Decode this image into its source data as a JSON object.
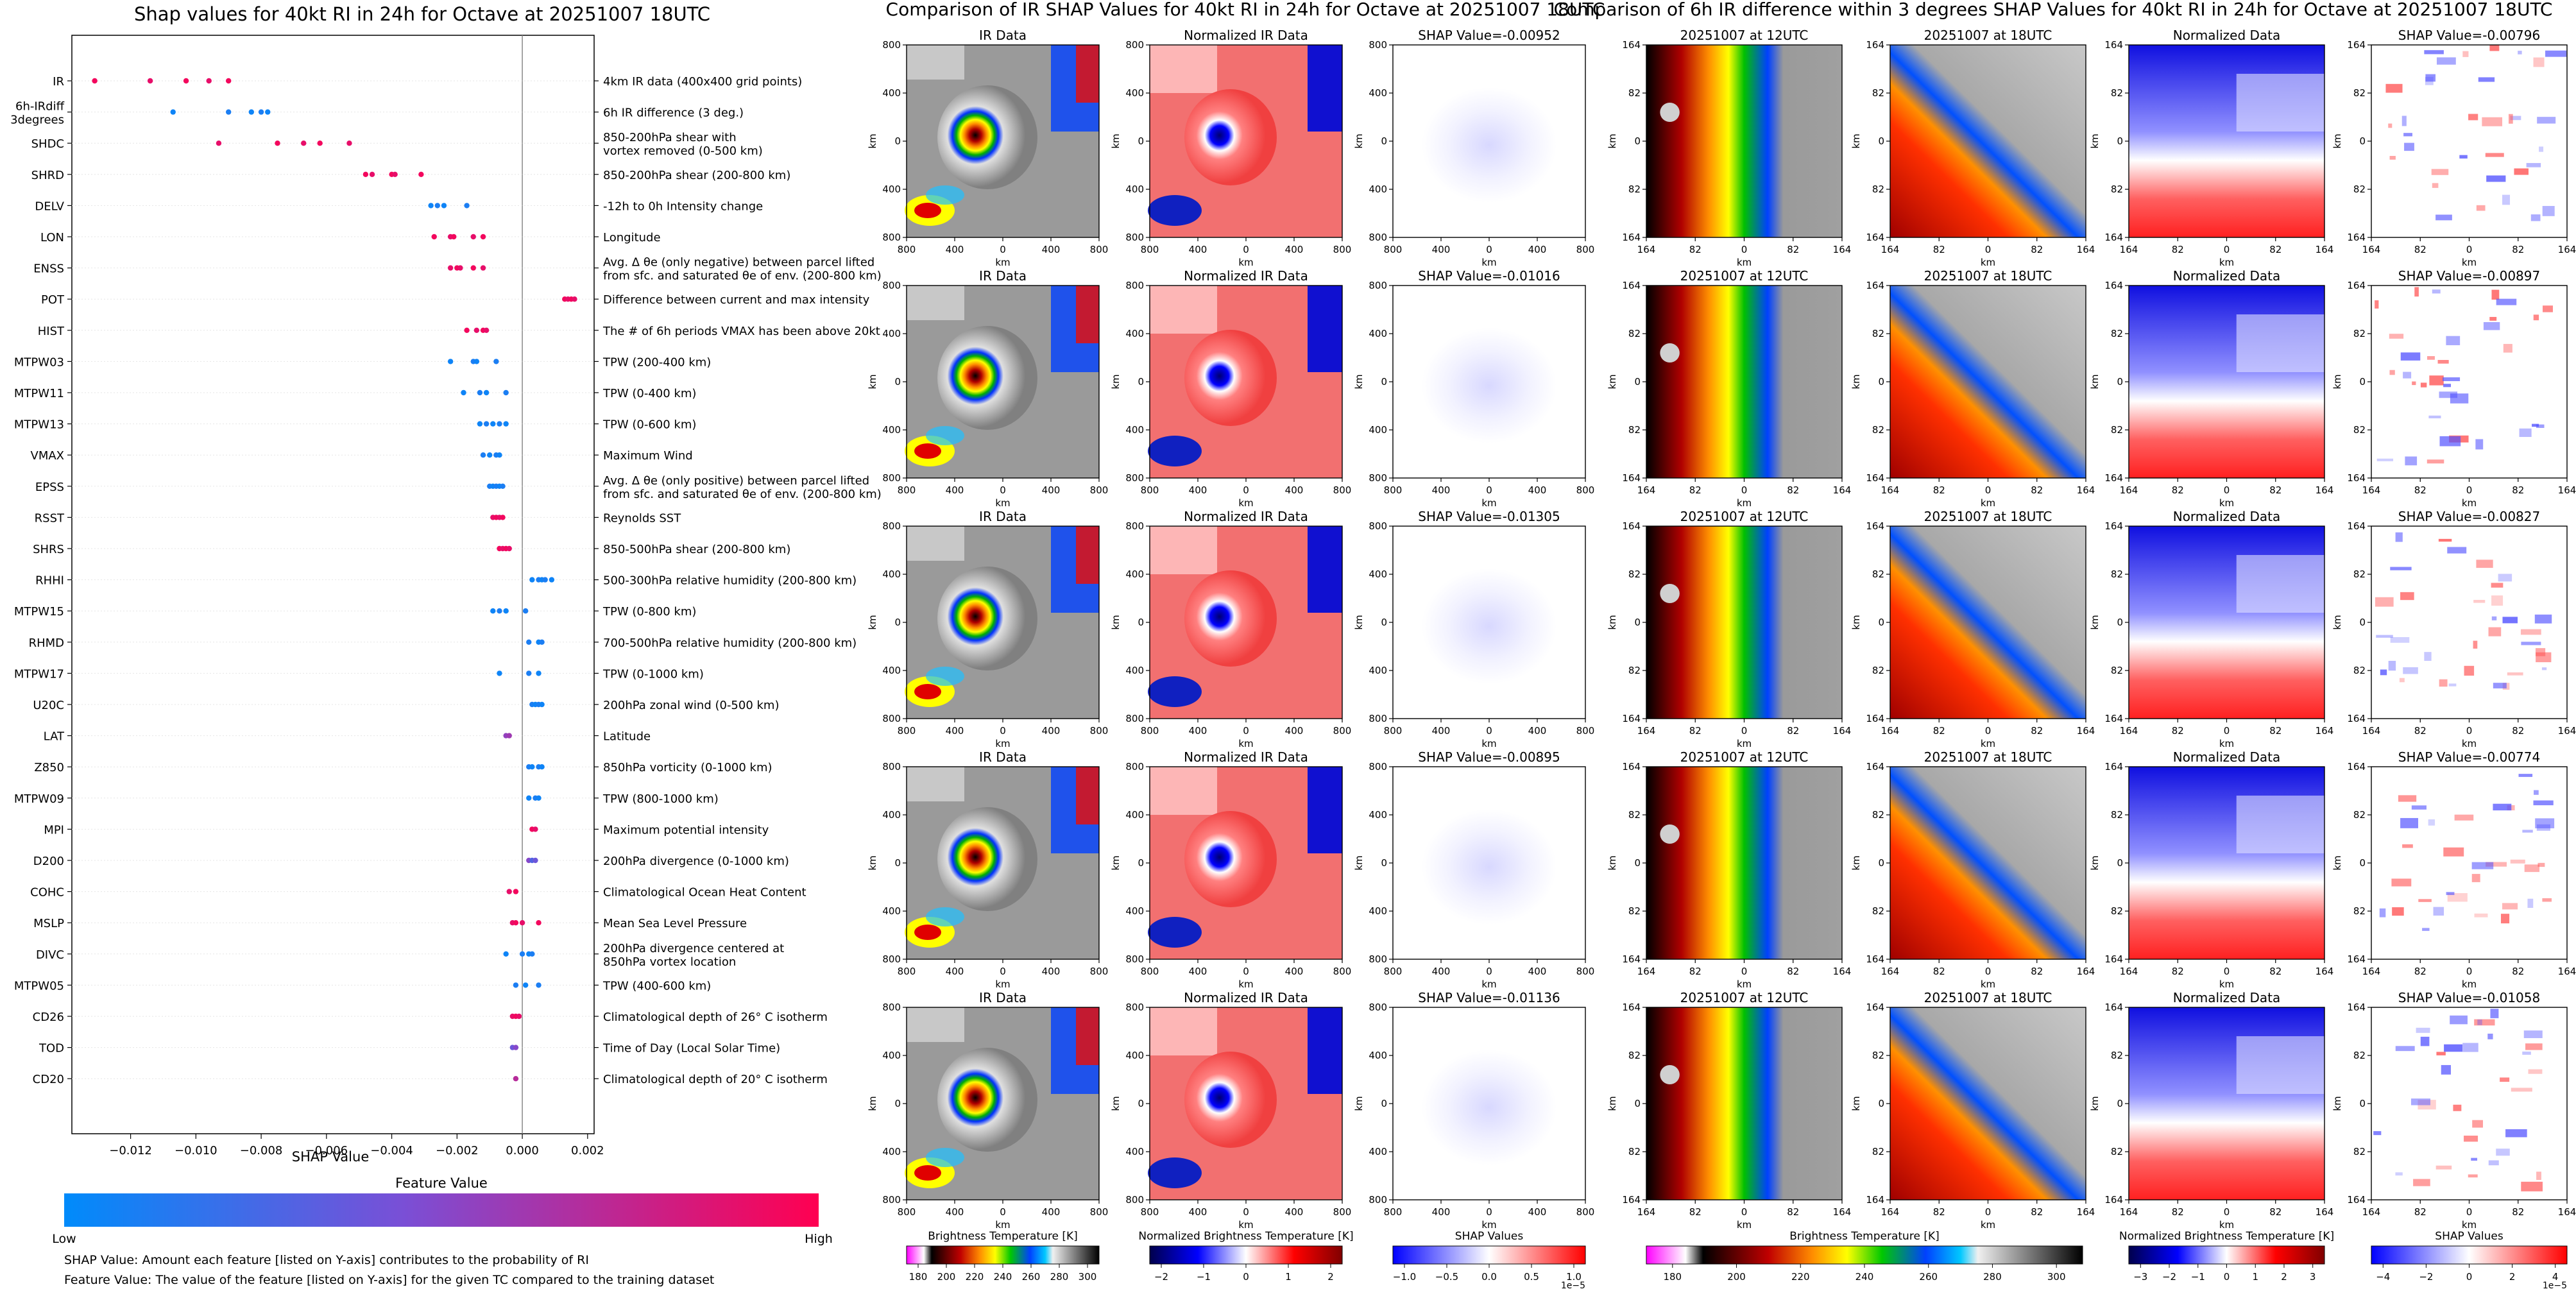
{
  "left_panel": {
    "title": "Shap values for 40kt RI in 24h for Octave at 20251007 18UTC",
    "xlabel": "SHAP Value",
    "colorbar": {
      "title": "Feature Value",
      "low_label": "Low",
      "high_label": "High",
      "low_color": "#008bfb",
      "high_color": "#ff0051"
    },
    "notes": [
      "SHAP Value: Amount each feature [listed on Y-axis] contributes to the probability of RI",
      "Feature Value: The value of the feature [listed on Y-axis] for the given TC compared to the training dataset"
    ]
  },
  "middle_section": {
    "title": "Comparison of IR SHAP Values for 40kt RI in 24h for Octave at 20251007 18UTC",
    "col_titles": [
      "IR Data",
      "Normalized IR Data"
    ],
    "shap_titles": [
      "SHAP Value=-0.00952",
      "SHAP Value=-0.01016",
      "SHAP Value=-0.01305",
      "SHAP Value=-0.00895",
      "SHAP Value=-0.01136"
    ],
    "axis_unit": "km",
    "x_ticks": [
      "800",
      "400",
      "0",
      "400",
      "800"
    ],
    "y_ticks": [
      "800",
      "400",
      "0",
      "400",
      "800"
    ],
    "colorbars": [
      {
        "label": "Brightness Temperature [K]",
        "ticks": [
          "180",
          "200",
          "220",
          "240",
          "260",
          "280",
          "300"
        ],
        "multiplier": ""
      },
      {
        "label": "Normalized Brightness Temperature [K]",
        "ticks": [
          "−2",
          "−1",
          "0",
          "1",
          "2"
        ],
        "multiplier": ""
      },
      {
        "label": "SHAP Values",
        "ticks": [
          "−1.0",
          "−0.5",
          "0.0",
          "0.5",
          "1.0"
        ],
        "multiplier": "1e−5"
      }
    ]
  },
  "right_section": {
    "title": "Comparison of 6h IR difference within 3 degrees SHAP Values for 40kt RI in 24h for Octave at 20251007 18UTC",
    "col_titles": [
      "20251007 at 12UTC",
      "20251007 at 18UTC",
      "Normalized Data"
    ],
    "shap_titles": [
      "SHAP Value=-0.00796",
      "SHAP Value=-0.00897",
      "SHAP Value=-0.00827",
      "SHAP Value=-0.00774",
      "SHAP Value=-0.01058"
    ],
    "axis_unit": "km",
    "x_ticks": [
      "164",
      "82",
      "0",
      "82",
      "164"
    ],
    "y_ticks": [
      "164",
      "82",
      "0",
      "82",
      "164"
    ],
    "colorbars": [
      {
        "label": "Brightness Temperature [K]",
        "ticks": [
          "180",
          "200",
          "220",
          "240",
          "260",
          "280",
          "300"
        ],
        "multiplier": ""
      },
      {
        "label": "Normalized Brightness Temperature [K]",
        "ticks": [
          "−3",
          "−2",
          "−1",
          "0",
          "1",
          "2",
          "3"
        ],
        "multiplier": ""
      },
      {
        "label": "SHAP Values",
        "ticks": [
          "−4",
          "−2",
          "0",
          "2",
          "4"
        ],
        "multiplier": "1e−5"
      }
    ]
  },
  "chart_data": {
    "type": "scatter",
    "title": "Shap values for 40kt RI in 24h for Octave at 20251007 18UTC",
    "xlabel": "SHAP Value",
    "xlim": [
      -0.0138,
      0.0022
    ],
    "x_ticks": [
      -0.012,
      -0.01,
      -0.008,
      -0.006,
      -0.004,
      -0.002,
      0.0,
      0.002
    ],
    "x_tick_labels": [
      "−0.012",
      "−0.010",
      "−0.008",
      "−0.006",
      "−0.004",
      "−0.002",
      "0.000",
      "0.002"
    ],
    "features": [
      {
        "name": "IR",
        "desc": "4km IR data (400x400 grid points)",
        "points": [
          [
            -0.0131,
            0.95
          ],
          [
            -0.0114,
            0.9
          ],
          [
            -0.0103,
            0.95
          ],
          [
            -0.0096,
            0.9
          ],
          [
            -0.009,
            0.95
          ]
        ]
      },
      {
        "name": "6h-IRdiff\n3degrees",
        "desc": "6h IR difference (3 deg.)",
        "points": [
          [
            -0.0107,
            0.05
          ],
          [
            -0.009,
            0.1
          ],
          [
            -0.0083,
            0.05
          ],
          [
            -0.008,
            0.1
          ],
          [
            -0.0078,
            0.05
          ]
        ]
      },
      {
        "name": "SHDC",
        "desc": "850-200hPa shear with\nvortex removed (0-500 km)",
        "points": [
          [
            -0.0093,
            0.9
          ],
          [
            -0.0075,
            0.95
          ],
          [
            -0.0067,
            0.9
          ],
          [
            -0.0062,
            0.95
          ],
          [
            -0.0053,
            0.9
          ]
        ]
      },
      {
        "name": "SHRD",
        "desc": "850-200hPa shear (200-800 km)",
        "points": [
          [
            -0.0048,
            0.95
          ],
          [
            -0.0046,
            0.9
          ],
          [
            -0.004,
            0.95
          ],
          [
            -0.0039,
            0.9
          ],
          [
            -0.0031,
            0.95
          ]
        ]
      },
      {
        "name": "DELV",
        "desc": "-12h to 0h Intensity change",
        "points": [
          [
            -0.0028,
            0.05
          ],
          [
            -0.0026,
            0.1
          ],
          [
            -0.0024,
            0.05
          ],
          [
            -0.0017,
            0.1
          ]
        ]
      },
      {
        "name": "LON",
        "desc": "Longitude",
        "points": [
          [
            -0.0027,
            0.95
          ],
          [
            -0.0022,
            0.9
          ],
          [
            -0.0021,
            0.95
          ],
          [
            -0.0015,
            0.9
          ],
          [
            -0.0012,
            0.95
          ]
        ]
      },
      {
        "name": "ENSS",
        "desc": "Avg. Δ θe (only negative) between parcel lifted\nfrom sfc. and saturated θe of env. (200-800 km)",
        "points": [
          [
            -0.0022,
            0.9
          ],
          [
            -0.002,
            0.95
          ],
          [
            -0.0019,
            0.9
          ],
          [
            -0.0015,
            0.95
          ],
          [
            -0.0012,
            0.9
          ]
        ]
      },
      {
        "name": "POT",
        "desc": "Difference between current and max intensity",
        "points": [
          [
            0.0013,
            0.95
          ],
          [
            0.0014,
            0.9
          ],
          [
            0.0015,
            0.95
          ],
          [
            0.0016,
            0.9
          ]
        ]
      },
      {
        "name": "HIST",
        "desc": "The # of 6h periods VMAX has been above 20kt",
        "points": [
          [
            -0.0017,
            0.95
          ],
          [
            -0.0014,
            0.9
          ],
          [
            -0.0012,
            0.95
          ],
          [
            -0.0011,
            0.9
          ]
        ]
      },
      {
        "name": "MTPW03",
        "desc": "TPW (200-400 km)",
        "points": [
          [
            -0.0022,
            0.05
          ],
          [
            -0.0015,
            0.1
          ],
          [
            -0.0014,
            0.05
          ],
          [
            -0.0008,
            0.1
          ]
        ]
      },
      {
        "name": "MTPW11",
        "desc": "TPW (0-400 km)",
        "points": [
          [
            -0.0018,
            0.05
          ],
          [
            -0.0013,
            0.1
          ],
          [
            -0.0011,
            0.05
          ],
          [
            -0.0005,
            0.1
          ]
        ]
      },
      {
        "name": "MTPW13",
        "desc": "TPW (0-600 km)",
        "points": [
          [
            -0.0013,
            0.05
          ],
          [
            -0.0011,
            0.1
          ],
          [
            -0.0009,
            0.05
          ],
          [
            -0.0007,
            0.1
          ],
          [
            -0.0005,
            0.05
          ]
        ]
      },
      {
        "name": "VMAX",
        "desc": "Maximum Wind",
        "points": [
          [
            -0.0012,
            0.1
          ],
          [
            -0.001,
            0.05
          ],
          [
            -0.0008,
            0.1
          ],
          [
            -0.0007,
            0.05
          ]
        ]
      },
      {
        "name": "EPSS",
        "desc": "Avg. Δ θe (only positive) between parcel lifted\nfrom sfc. and saturated θe of env. (200-800 km)",
        "points": [
          [
            -0.001,
            0.1
          ],
          [
            -0.0009,
            0.05
          ],
          [
            -0.0008,
            0.1
          ],
          [
            -0.0007,
            0.05
          ],
          [
            -0.0006,
            0.1
          ]
        ]
      },
      {
        "name": "RSST",
        "desc": "Reynolds SST",
        "points": [
          [
            -0.0009,
            0.9
          ],
          [
            -0.0008,
            0.95
          ],
          [
            -0.0007,
            0.9
          ],
          [
            -0.0006,
            0.95
          ]
        ]
      },
      {
        "name": "SHRS",
        "desc": "850-500hPa shear (200-800 km)",
        "points": [
          [
            -0.0007,
            0.95
          ],
          [
            -0.0006,
            0.9
          ],
          [
            -0.0005,
            0.95
          ],
          [
            -0.0004,
            0.9
          ]
        ]
      },
      {
        "name": "RHHI",
        "desc": "500-300hPa relative humidity (200-800 km)",
        "points": [
          [
            0.0003,
            0.05
          ],
          [
            0.0005,
            0.1
          ],
          [
            0.0006,
            0.05
          ],
          [
            0.0007,
            0.1
          ],
          [
            0.0009,
            0.05
          ]
        ]
      },
      {
        "name": "MTPW15",
        "desc": "TPW (0-800 km)",
        "points": [
          [
            -0.0009,
            0.05
          ],
          [
            -0.0007,
            0.1
          ],
          [
            -0.0005,
            0.05
          ],
          [
            0.0001,
            0.1
          ]
        ]
      },
      {
        "name": "RHMD",
        "desc": "700-500hPa relative humidity (200-800 km)",
        "points": [
          [
            0.0002,
            0.1
          ],
          [
            0.0005,
            0.05
          ],
          [
            0.0006,
            0.1
          ]
        ]
      },
      {
        "name": "MTPW17",
        "desc": "TPW (0-1000 km)",
        "points": [
          [
            -0.0007,
            0.05
          ],
          [
            0.0002,
            0.1
          ],
          [
            0.0005,
            0.05
          ]
        ]
      },
      {
        "name": "U20C",
        "desc": "200hPa zonal wind (0-500 km)",
        "points": [
          [
            0.0003,
            0.1
          ],
          [
            0.0004,
            0.05
          ],
          [
            0.0005,
            0.1
          ],
          [
            0.0006,
            0.05
          ]
        ]
      },
      {
        "name": "LAT",
        "desc": "Latitude",
        "points": [
          [
            -0.0005,
            0.55
          ],
          [
            -0.0004,
            0.6
          ]
        ]
      },
      {
        "name": "Z850",
        "desc": "850hPa vorticity (0-1000 km)",
        "points": [
          [
            0.0002,
            0.1
          ],
          [
            0.0003,
            0.05
          ],
          [
            0.0005,
            0.1
          ],
          [
            0.0006,
            0.05
          ]
        ]
      },
      {
        "name": "MTPW09",
        "desc": "TPW (800-1000 km)",
        "points": [
          [
            0.0002,
            0.05
          ],
          [
            0.0004,
            0.1
          ],
          [
            0.0005,
            0.05
          ]
        ]
      },
      {
        "name": "MPI",
        "desc": "Maximum potential intensity",
        "points": [
          [
            0.0003,
            0.95
          ],
          [
            0.0004,
            0.9
          ]
        ]
      },
      {
        "name": "D200",
        "desc": "200hPa divergence (0-1000 km)",
        "points": [
          [
            0.0002,
            0.5
          ],
          [
            0.0003,
            0.3
          ],
          [
            0.0004,
            0.4
          ]
        ]
      },
      {
        "name": "COHC",
        "desc": "Climatological Ocean Heat Content",
        "points": [
          [
            -0.0004,
            0.9
          ],
          [
            -0.0002,
            0.95
          ]
        ]
      },
      {
        "name": "MSLP",
        "desc": "Mean Sea Level Pressure",
        "points": [
          [
            -0.0003,
            0.9
          ],
          [
            -0.0002,
            0.95
          ],
          [
            0.0,
            0.9
          ],
          [
            0.0005,
            0.95
          ]
        ]
      },
      {
        "name": "DIVC",
        "desc": "200hPa divergence centered at\n850hPa vortex location",
        "points": [
          [
            -0.0005,
            0.05
          ],
          [
            0.0,
            0.1
          ],
          [
            0.0002,
            0.05
          ],
          [
            0.0003,
            0.1
          ]
        ]
      },
      {
        "name": "MTPW05",
        "desc": "TPW (400-600 km)",
        "points": [
          [
            -0.0002,
            0.1
          ],
          [
            0.0001,
            0.05
          ],
          [
            0.0005,
            0.1
          ]
        ]
      },
      {
        "name": "CD26",
        "desc": "Climatological depth of 26° C isotherm",
        "points": [
          [
            -0.0003,
            0.9
          ],
          [
            -0.0002,
            0.95
          ],
          [
            -0.0001,
            0.9
          ]
        ]
      },
      {
        "name": "TOD",
        "desc": "Time of Day (Local Solar Time)",
        "points": [
          [
            -0.0003,
            0.4
          ],
          [
            -0.0002,
            0.5
          ]
        ]
      },
      {
        "name": "CD20",
        "desc": "Climatological depth of 20° C isotherm",
        "points": [
          [
            -0.0002,
            0.7
          ]
        ]
      }
    ]
  }
}
